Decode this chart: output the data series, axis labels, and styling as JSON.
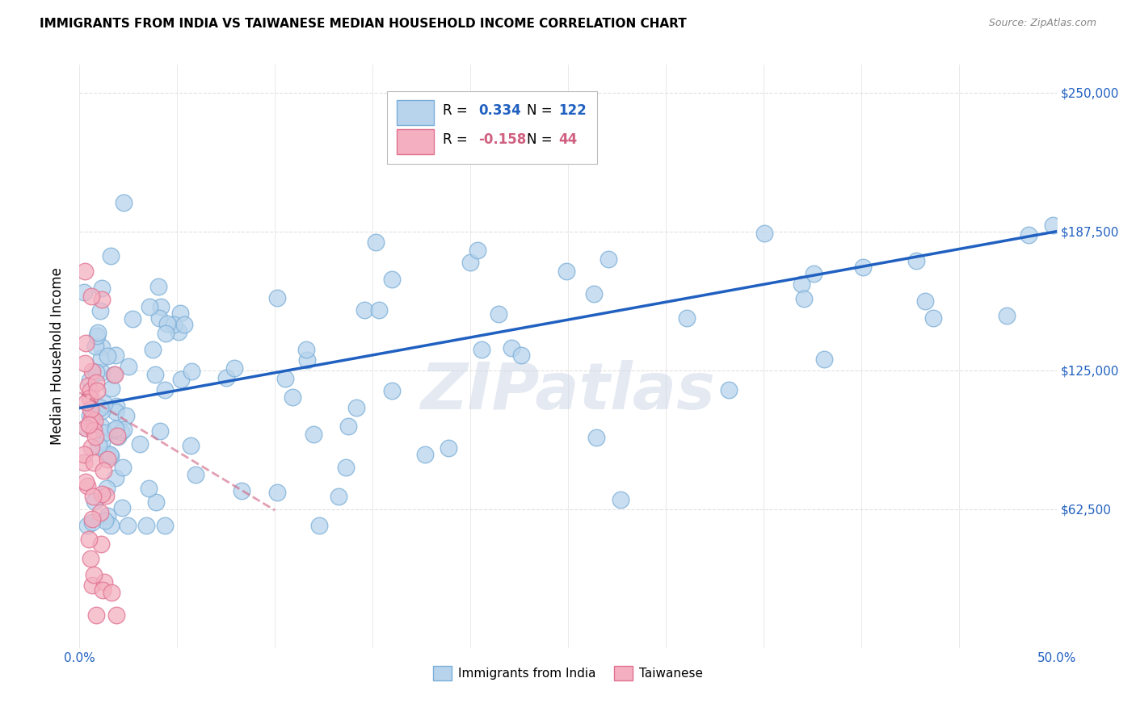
{
  "title": "IMMIGRANTS FROM INDIA VS TAIWANESE MEDIAN HOUSEHOLD INCOME CORRELATION CHART",
  "source": "Source: ZipAtlas.com",
  "ylabel": "Median Household Income",
  "xlim": [
    0,
    0.5
  ],
  "ylim": [
    0,
    262500
  ],
  "yticks": [
    62500,
    125000,
    187500,
    250000
  ],
  "ytick_labels": [
    "$62,500",
    "$125,000",
    "$187,500",
    "$250,000"
  ],
  "xticks": [
    0.0,
    0.05,
    0.1,
    0.15,
    0.2,
    0.25,
    0.3,
    0.35,
    0.4,
    0.45,
    0.5
  ],
  "india_color": "#b8d4ec",
  "india_edge_color": "#7aaed8",
  "taiwan_color": "#f4b0c0",
  "taiwan_edge_color": "#e07090",
  "india_line_color": "#2060c0",
  "taiwan_line_color": "#d06080",
  "background_color": "#ffffff",
  "grid_color": "#e0e0e0",
  "watermark": "ZIPatlas",
  "india_line_x0": 0.0,
  "india_line_y0": 108000,
  "india_line_x1": 0.5,
  "india_line_y1": 187500,
  "taiwan_line_x0": 0.0,
  "taiwan_line_y0": 115000,
  "taiwan_line_x1": 0.1,
  "taiwan_line_y1": 62000
}
